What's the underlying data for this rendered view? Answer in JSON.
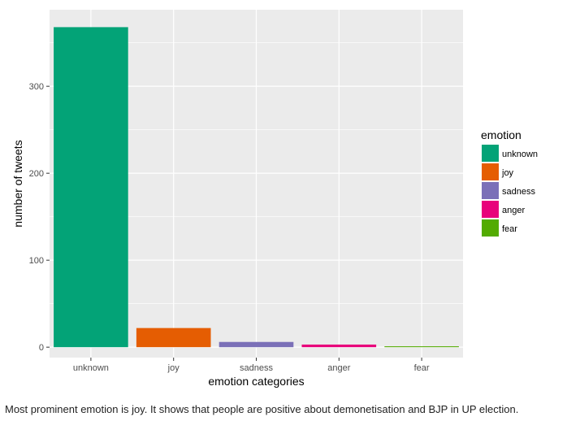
{
  "chart_data": {
    "type": "bar",
    "categories": [
      "unknown",
      "joy",
      "sadness",
      "anger",
      "fear"
    ],
    "values": [
      368,
      22,
      6,
      3,
      1
    ],
    "xlabel": "emotion categories",
    "ylabel": "number of tweets",
    "ylim": [
      -12,
      388
    ],
    "yticks": [
      0,
      100,
      200,
      300
    ],
    "ytick_labels": [
      "0",
      "100",
      "200",
      "300"
    ],
    "grid": true,
    "legend": {
      "title": "emotion",
      "position": "right",
      "entries": [
        "unknown",
        "joy",
        "sadness",
        "anger",
        "fear"
      ]
    },
    "colors": [
      "#03a377",
      "#e55d02",
      "#7b70b8",
      "#e8027b",
      "#53ab02"
    ],
    "panel_background": "#ebebeb",
    "grid_color": "#ffffff"
  },
  "caption": "Most prominent emotion is joy. It shows that people are positive about demonetisation and BJP in UP election."
}
